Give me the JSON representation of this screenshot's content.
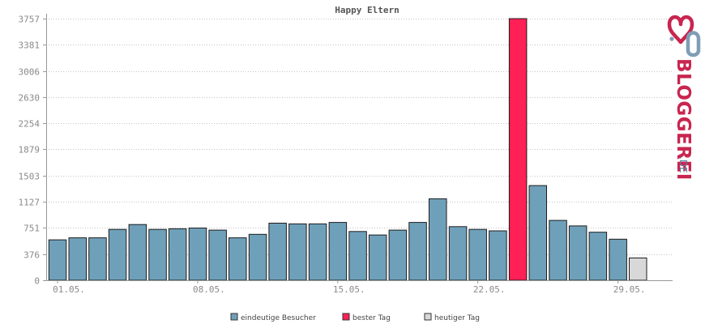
{
  "chart_data": {
    "type": "bar",
    "title": "Happy Eltern",
    "y_ticks": [
      "0",
      "376",
      "751",
      "1127",
      "1503",
      "1879",
      "2254",
      "2630",
      "3006",
      "3381",
      "3757"
    ],
    "ylim": [
      0,
      3757
    ],
    "x_tick_labels": [
      {
        "label": "01.05.",
        "index": 0
      },
      {
        "label": "08.05.",
        "index": 7
      },
      {
        "label": "15.05.",
        "index": 14
      },
      {
        "label": "22.05.",
        "index": 21
      },
      {
        "label": "29.05.",
        "index": 28
      }
    ],
    "values": [
      580,
      610,
      610,
      730,
      800,
      730,
      740,
      750,
      720,
      610,
      660,
      820,
      810,
      810,
      830,
      700,
      650,
      720,
      830,
      1170,
      770,
      730,
      710,
      3757,
      1360,
      860,
      780,
      690,
      590,
      320
    ],
    "bar_kinds": [
      "visitors",
      "visitors",
      "visitors",
      "visitors",
      "visitors",
      "visitors",
      "visitors",
      "visitors",
      "visitors",
      "visitors",
      "visitors",
      "visitors",
      "visitors",
      "visitors",
      "visitors",
      "visitors",
      "visitors",
      "visitors",
      "visitors",
      "visitors",
      "visitors",
      "visitors",
      "visitors",
      "best",
      "visitors",
      "visitors",
      "visitors",
      "visitors",
      "visitors",
      "today"
    ],
    "grid": true,
    "legend_position": "bottom",
    "legend": [
      {
        "key": "visitors",
        "label": "eindeutige Besucher",
        "color": "#6fa0ba"
      },
      {
        "key": "best",
        "label": "bester Tag",
        "color": "#ff2056"
      },
      {
        "key": "today",
        "label": "heutiger Tag",
        "color": "#d8d8d8"
      }
    ]
  },
  "logo": {
    "text": "BLOGGEREI",
    "suffix": ".DE"
  }
}
